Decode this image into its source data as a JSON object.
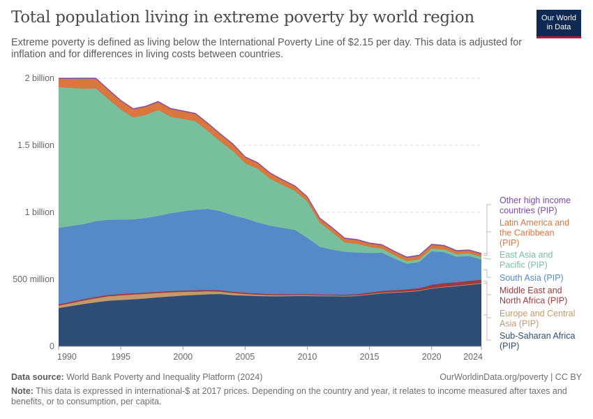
{
  "header": {
    "title": "Total population living in extreme poverty by world region",
    "subtitle": "Extreme poverty is defined as living below the International Poverty Line of $2.15 per day. This data is adjusted for inflation and for differences in living costs between countries."
  },
  "logo": {
    "line1": "Our World",
    "line2": "in Data"
  },
  "footer": {
    "source_label": "Data source:",
    "source_text": "World Bank Poverty and Inequality Platform (2024)",
    "link_text": "OurWorldinData.org/poverty | CC BY",
    "note_label": "Note:",
    "note_text": "This data is expressed in international-$ at 2017 prices. Depending on the country and year, it relates to income measured after taxes and benefits, or to consumption, per capita."
  },
  "chart_data": {
    "type": "area",
    "stacked": true,
    "title": "Total population living in extreme poverty by world region",
    "unit": "million people",
    "xlim": [
      1990,
      2024
    ],
    "ylim": [
      0,
      2000
    ],
    "x_ticks": [
      1990,
      1995,
      2000,
      2005,
      2010,
      2015,
      2020,
      2024
    ],
    "y_ticks": [
      {
        "value": 0,
        "label": "0"
      },
      {
        "value": 500,
        "label": "500 million"
      },
      {
        "value": 1000,
        "label": "1 billion"
      },
      {
        "value": 1500,
        "label": "1.5 billion"
      },
      {
        "value": 2000,
        "label": "2 billion"
      }
    ],
    "grid": true,
    "legend_position": "right",
    "x": [
      1990,
      1991,
      1992,
      1993,
      1994,
      1995,
      1996,
      1997,
      1998,
      1999,
      2000,
      2001,
      2002,
      2003,
      2004,
      2005,
      2006,
      2007,
      2008,
      2009,
      2010,
      2011,
      2012,
      2013,
      2014,
      2015,
      2016,
      2017,
      2018,
      2019,
      2020,
      2021,
      2022,
      2023,
      2024
    ],
    "series": [
      {
        "name": "Sub-Saharan Africa (PIP)",
        "color": "#2d4d77",
        "label": [
          "Sub-Saharan Africa",
          "(PIP)"
        ],
        "values": [
          285,
          300,
          315,
          328,
          340,
          345,
          350,
          357,
          365,
          372,
          378,
          383,
          388,
          390,
          382,
          378,
          375,
          373,
          373,
          375,
          375,
          374,
          373,
          372,
          375,
          385,
          395,
          400,
          405,
          412,
          430,
          440,
          448,
          458,
          468
        ]
      },
      {
        "name": "Europe and Central Asia (PIP)",
        "color": "#c49a6c",
        "label": [
          "Europe and Central",
          "Asia (PIP)"
        ],
        "values": [
          18,
          22,
          26,
          30,
          33,
          35,
          36,
          34,
          32,
          30,
          28,
          25,
          22,
          18,
          15,
          12,
          10,
          8,
          7,
          6,
          6,
          5,
          5,
          5,
          4,
          4,
          4,
          4,
          4,
          4,
          4,
          4,
          4,
          4,
          4
        ]
      },
      {
        "name": "Middle East and North Africa (PIP)",
        "color": "#9e3a3f",
        "label": [
          "Middle East and",
          "North Africa (PIP)"
        ],
        "values": [
          10,
          10,
          10,
          10,
          10,
          10,
          10,
          10,
          10,
          10,
          10,
          10,
          10,
          10,
          10,
          9,
          9,
          9,
          8,
          8,
          8,
          8,
          8,
          8,
          10,
          12,
          14,
          15,
          16,
          18,
          25,
          28,
          26,
          26,
          25
        ]
      },
      {
        "name": "South Asia (PIP)",
        "color": "#5589c8",
        "label": [
          "South Asia (PIP)"
        ],
        "values": [
          570,
          565,
          560,
          565,
          560,
          555,
          550,
          555,
          565,
          580,
          590,
          600,
          605,
          590,
          570,
          555,
          530,
          510,
          495,
          480,
          420,
          355,
          335,
          320,
          310,
          295,
          285,
          235,
          190,
          195,
          250,
          230,
          190,
          185,
          150
        ]
      },
      {
        "name": "East Asia and Pacific (PIP)",
        "color": "#78bf9e",
        "label": [
          "East Asia and",
          "Pacific (PIP)"
        ],
        "values": [
          1050,
          1030,
          1010,
          990,
          900,
          820,
          760,
          770,
          790,
          720,
          690,
          660,
          580,
          520,
          480,
          410,
          400,
          350,
          320,
          290,
          270,
          180,
          130,
          70,
          65,
          45,
          30,
          25,
          20,
          20,
          20,
          20,
          20,
          20,
          20
        ]
      },
      {
        "name": "Latin America and the Caribbean (PIP)",
        "color": "#d9773e",
        "label": [
          "Latin America and",
          "the Caribbean",
          "(PIP)"
        ],
        "values": [
          62,
          68,
          75,
          72,
          68,
          65,
          62,
          60,
          60,
          58,
          56,
          55,
          55,
          53,
          50,
          45,
          42,
          40,
          36,
          34,
          32,
          31,
          30,
          29,
          28,
          26,
          26,
          26,
          26,
          26,
          28,
          26,
          22,
          22,
          22
        ]
      },
      {
        "name": "Other high income countries (PIP)",
        "color": "#7b4aa6",
        "label": [
          "Other high income",
          "countries (PIP)"
        ],
        "values": [
          5,
          5,
          5,
          5,
          5,
          5,
          5,
          5,
          5,
          5,
          5,
          5,
          5,
          5,
          5,
          5,
          5,
          5,
          5,
          5,
          5,
          5,
          5,
          5,
          5,
          5,
          5,
          5,
          5,
          5,
          5,
          5,
          5,
          5,
          5
        ]
      }
    ]
  }
}
